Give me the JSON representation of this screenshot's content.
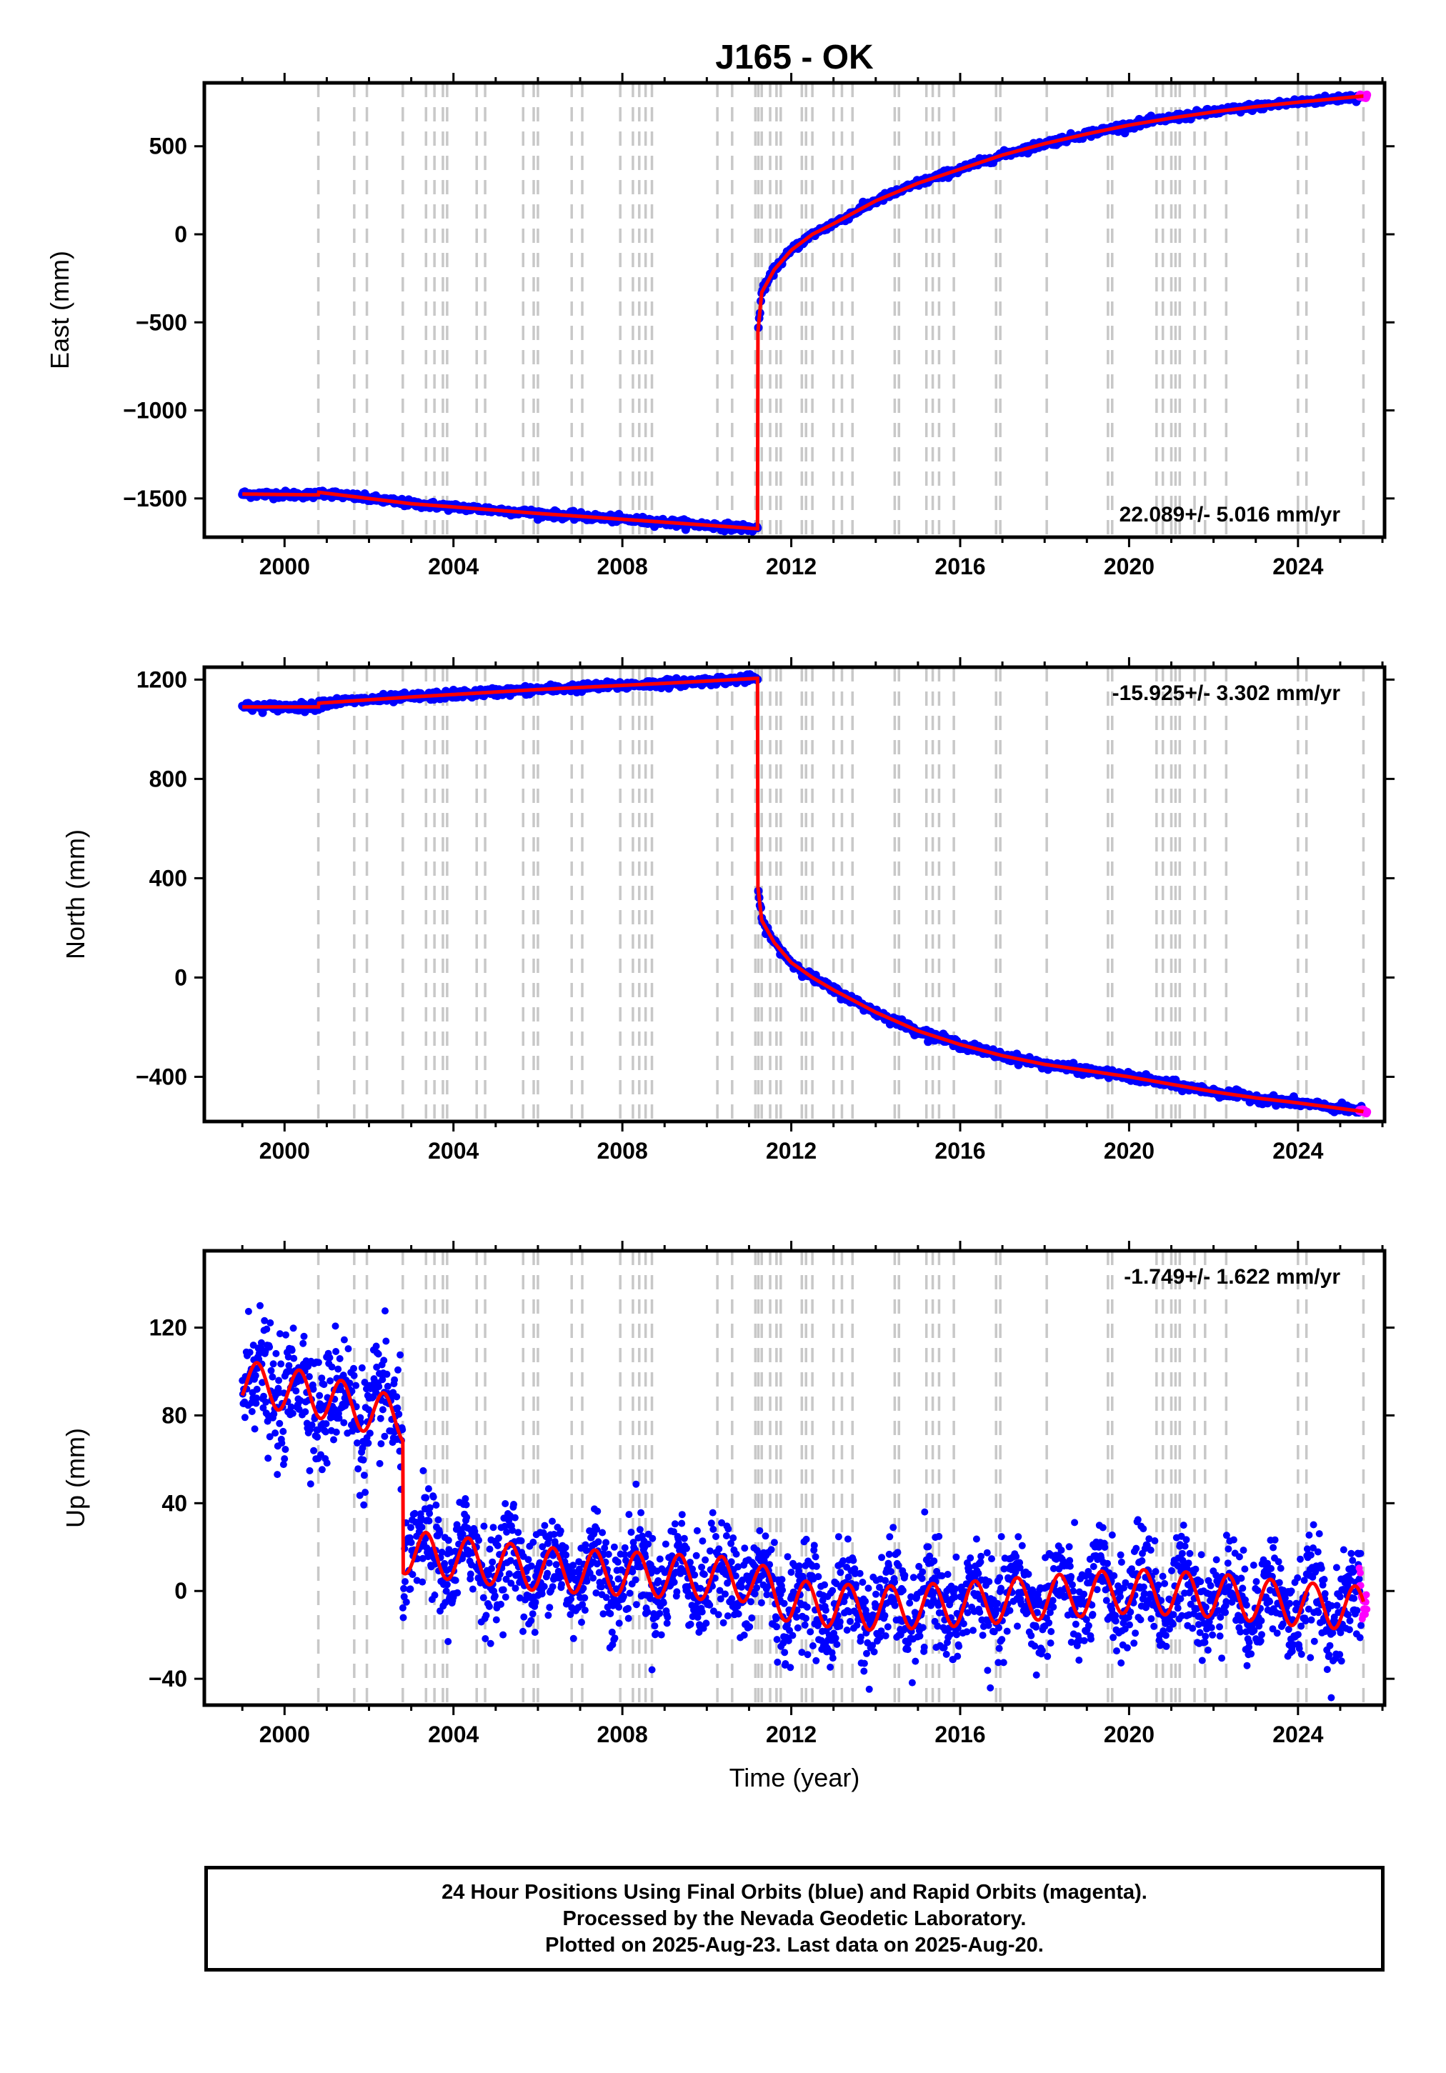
{
  "title": "J165 - OK",
  "chart_data": [
    {
      "type": "scatter",
      "name": "east",
      "ylabel": "East (mm)",
      "xlabel": "",
      "xlim": [
        1998.1,
        2026.05
      ],
      "ylim": [
        -1720,
        860
      ],
      "xticks": [
        2000,
        2004,
        2008,
        2012,
        2016,
        2020,
        2024
      ],
      "yticks": [
        500,
        0,
        -500,
        -1000,
        -1500
      ],
      "ytick_labels": [
        "500",
        "0",
        "−500",
        "−1000",
        "−1500"
      ],
      "rate_text": "22.089+/- 5.016 mm/yr",
      "rate_position": "bottom-right",
      "model_points": [
        [
          1999.0,
          -1475
        ],
        [
          2000.8,
          -1480
        ],
        [
          2000.8,
          -1465
        ],
        [
          2003.0,
          -1530
        ],
        [
          2006.0,
          -1585
        ],
        [
          2009.0,
          -1635
        ],
        [
          2011.19,
          -1672
        ],
        [
          2011.2,
          -1672
        ],
        [
          2011.2,
          -580
        ],
        [
          2011.3,
          -330
        ],
        [
          2011.6,
          -200
        ],
        [
          2012.0,
          -90
        ],
        [
          2012.5,
          0
        ],
        [
          2013.0,
          60
        ],
        [
          2014.0,
          190
        ],
        [
          2015.0,
          290
        ],
        [
          2016.0,
          370
        ],
        [
          2017.0,
          450
        ],
        [
          2018.0,
          515
        ],
        [
          2019.0,
          570
        ],
        [
          2020.0,
          620
        ],
        [
          2021.0,
          660
        ],
        [
          2022.0,
          695
        ],
        [
          2023.0,
          725
        ],
        [
          2024.0,
          750
        ],
        [
          2025.55,
          785
        ]
      ],
      "noise_mm": 10
    },
    {
      "type": "scatter",
      "name": "north",
      "ylabel": "North (mm)",
      "xlabel": "",
      "xlim": [
        1998.1,
        2026.05
      ],
      "ylim": [
        -580,
        1250
      ],
      "xticks": [
        2000,
        2004,
        2008,
        2012,
        2016,
        2020,
        2024
      ],
      "yticks": [
        1200,
        800,
        400,
        0,
        -400
      ],
      "ytick_labels": [
        "1200",
        "800",
        "400",
        "0",
        "−400"
      ],
      "rate_text": "-15.925+/- 3.302 mm/yr",
      "rate_position": "top-right",
      "model_points": [
        [
          1999.0,
          1090
        ],
        [
          2000.8,
          1090
        ],
        [
          2000.8,
          1105
        ],
        [
          2003.0,
          1130
        ],
        [
          2006.0,
          1160
        ],
        [
          2009.0,
          1185
        ],
        [
          2011.19,
          1205
        ],
        [
          2011.2,
          1205
        ],
        [
          2011.2,
          380
        ],
        [
          2011.3,
          230
        ],
        [
          2011.6,
          140
        ],
        [
          2012.0,
          60
        ],
        [
          2012.5,
          0
        ],
        [
          2013.0,
          -50
        ],
        [
          2014.0,
          -140
        ],
        [
          2015.0,
          -215
        ],
        [
          2016.0,
          -270
        ],
        [
          2017.0,
          -315
        ],
        [
          2018.0,
          -350
        ],
        [
          2019.0,
          -375
        ],
        [
          2020.0,
          -400
        ],
        [
          2021.0,
          -430
        ],
        [
          2022.0,
          -460
        ],
        [
          2023.0,
          -485
        ],
        [
          2024.0,
          -505
        ],
        [
          2025.55,
          -540
        ]
      ],
      "noise_mm": 8
    },
    {
      "type": "scatter",
      "name": "up",
      "ylabel": "Up (mm)",
      "xlabel": "Time (year)",
      "xlim": [
        1998.1,
        2026.05
      ],
      "ylim": [
        -52,
        155
      ],
      "xticks": [
        2000,
        2004,
        2008,
        2012,
        2016,
        2020,
        2024
      ],
      "yticks": [
        120,
        80,
        40,
        0,
        -40
      ],
      "ytick_labels": [
        "120",
        "80",
        "40",
        "0",
        "−40"
      ],
      "rate_text": "-1.749+/- 1.622 mm/yr",
      "rate_position": "top-right",
      "model_points": [
        [
          1999.0,
          95
        ],
        [
          2000.0,
          92
        ],
        [
          2001.0,
          88
        ],
        [
          2002.0,
          82
        ],
        [
          2002.8,
          78
        ],
        [
          2002.8,
          18
        ],
        [
          2006.0,
          10
        ],
        [
          2011.0,
          5
        ],
        [
          2012.0,
          -5
        ],
        [
          2014.0,
          -8
        ],
        [
          2016.0,
          -6
        ],
        [
          2018.0,
          -3
        ],
        [
          2020.0,
          0
        ],
        [
          2022.0,
          -2
        ],
        [
          2024.0,
          -6
        ],
        [
          2025.55,
          -8
        ]
      ],
      "seasonal_amplitude": 10,
      "noise_mm": 11
    }
  ],
  "event_lines": [
    2000.8,
    2001.65,
    2001.95,
    2002.8,
    2003.35,
    2003.55,
    2003.75,
    2003.85,
    2004.55,
    2004.75,
    2005.65,
    2005.9,
    2006.0,
    2006.8,
    2007.05,
    2007.95,
    2008.25,
    2008.4,
    2008.55,
    2008.7,
    2010.25,
    2010.6,
    2011.15,
    2011.22,
    2011.3,
    2011.5,
    2011.65,
    2011.75,
    2012.25,
    2012.35,
    2012.5,
    2013.0,
    2013.2,
    2013.45,
    2014.45,
    2014.55,
    2015.2,
    2015.35,
    2015.5,
    2015.85,
    2016.85,
    2016.95,
    2018.05,
    2019.5,
    2019.6,
    2020.65,
    2020.8,
    2021.0,
    2021.1,
    2021.2,
    2021.55,
    2021.8,
    2022.3,
    2024.0,
    2024.2,
    2025.55
  ],
  "colors": {
    "final_orbits": "#0000ff",
    "rapid_orbits": "#ff00ff",
    "model": "#ff0000",
    "event_line": "#c8c8c8",
    "axis": "#000000"
  },
  "footer": {
    "line1": "24 Hour Positions Using Final Orbits (blue) and Rapid Orbits (magenta).",
    "line2": "Processed by the Nevada Geodetic Laboratory.",
    "line3": "Plotted on 2025-Aug-23. Last data on 2025-Aug-20."
  }
}
